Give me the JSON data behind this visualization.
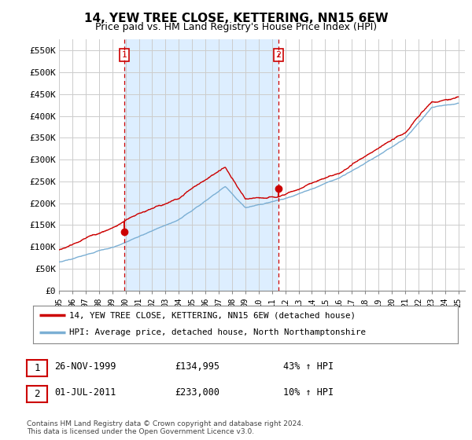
{
  "title": "14, YEW TREE CLOSE, KETTERING, NN15 6EW",
  "subtitle": "Price paid vs. HM Land Registry's House Price Index (HPI)",
  "legend_label_red": "14, YEW TREE CLOSE, KETTERING, NN15 6EW (detached house)",
  "legend_label_blue": "HPI: Average price, detached house, North Northamptonshire",
  "table_rows": [
    {
      "num": "1",
      "date": "26-NOV-1999",
      "price": "£134,995",
      "change": "43% ↑ HPI"
    },
    {
      "num": "2",
      "date": "01-JUL-2011",
      "price": "£233,000",
      "change": "10% ↑ HPI"
    }
  ],
  "footnote": "Contains HM Land Registry data © Crown copyright and database right 2024.\nThis data is licensed under the Open Government Licence v3.0.",
  "sale1_year": 1999.9,
  "sale1_price": 134995,
  "sale2_year": 2011.5,
  "sale2_price": 233000,
  "ylim": [
    0,
    575000
  ],
  "yticks": [
    0,
    50000,
    100000,
    150000,
    200000,
    250000,
    300000,
    350000,
    400000,
    450000,
    500000,
    550000
  ],
  "red_color": "#cc0000",
  "blue_color": "#7bafd4",
  "shade_color": "#ddeeff",
  "grid_color": "#cccccc",
  "background_color": "#ffffff",
  "plot_bg_color": "#ffffff"
}
